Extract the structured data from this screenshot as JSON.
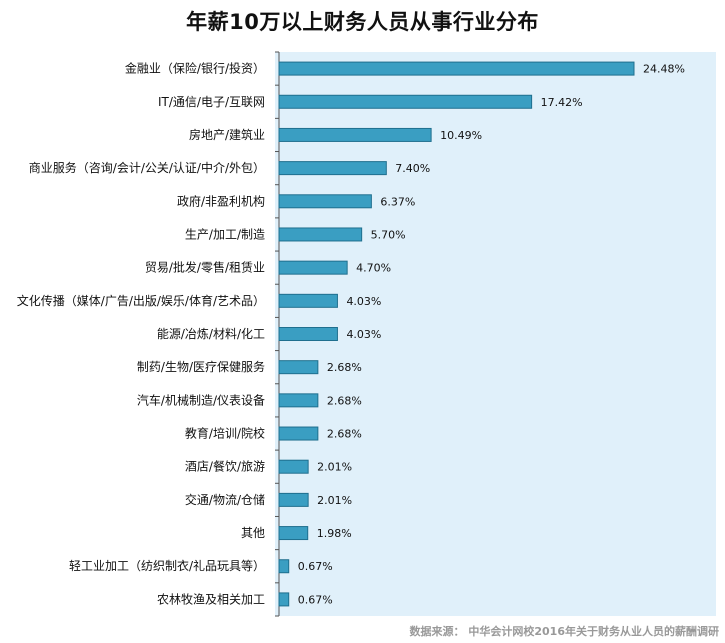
{
  "chart_data": {
    "type": "bar",
    "orientation": "horizontal",
    "title": "年薪10万以上财务人员从事行业分布",
    "categories": [
      "金融业（保险/银行/投资）",
      "IT/通信/电子/互联网",
      "房地产/建筑业",
      "商业服务（咨询/会计/公关/认证/中介/外包）",
      "政府/非盈利机构",
      "生产/加工/制造",
      "贸易/批发/零售/租赁业",
      "文化传播（媒体/广告/出版/娱乐/体育/艺术品）",
      "能源/冶炼/材料/化工",
      "制药/生物/医疗保健服务",
      "汽车/机械制造/仪表设备",
      "教育/培训/院校",
      "酒店/餐饮/旅游",
      "交通/物流/仓储",
      "其他",
      "轻工业加工（纺织制衣/礼品玩具等）",
      "农林牧渔及相关加工"
    ],
    "values": [
      24.48,
      17.42,
      10.49,
      7.4,
      6.37,
      5.7,
      4.7,
      4.03,
      4.03,
      2.68,
      2.68,
      2.68,
      2.01,
      2.01,
      1.98,
      0.67,
      0.67
    ],
    "value_labels": [
      "24.48%",
      "17.42%",
      "10.49%",
      "7.40%",
      "6.37%",
      "5.70%",
      "4.70%",
      "4.03%",
      "4.03%",
      "2.68%",
      "2.68%",
      "2.68%",
      "2.01%",
      "2.01%",
      "1.98%",
      "0.67%",
      "0.67%"
    ],
    "xlim": [
      0,
      30
    ],
    "grid": false,
    "legend": "none",
    "bar_color": "#3a9ec2",
    "bar_edge_color": "#1f6f8e",
    "plot_background": "#e0f0fa",
    "source": "数据来源： 中华会计网校2016年关于财务从业人员的薪酬调研"
  }
}
